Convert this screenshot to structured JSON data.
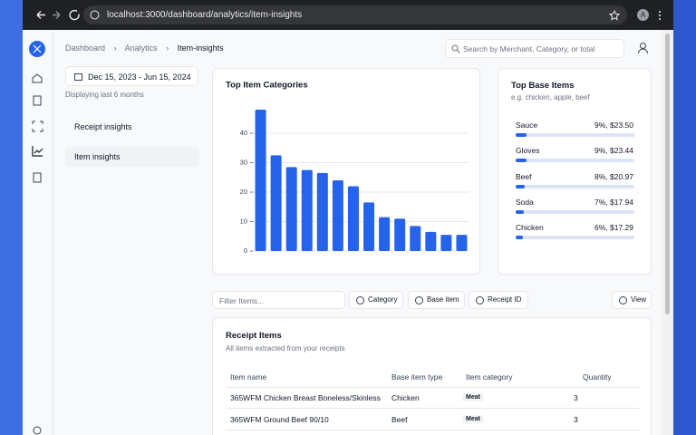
{
  "browser": {
    "url": "localhost:3000/dashboard/analytics/item-insights",
    "avatar": "A"
  },
  "breadcrumb": [
    "Dashboard",
    "Analytics",
    "Item-insights"
  ],
  "search_placeholder": "Search by Merchant, Category, or total",
  "date_range": "Dec 15, 2023 - Jun 15, 2024",
  "date_caption": "Displaying last 6 months",
  "nav": [
    "Receipt insights",
    "Item insights"
  ],
  "chart_data": {
    "type": "bar",
    "title": "Top Item Categories",
    "categories": [
      null,
      null,
      null,
      null,
      null,
      null,
      null,
      null,
      null,
      null,
      null,
      null,
      null,
      null
    ],
    "values": [
      48,
      32.5,
      28.5,
      27.5,
      26.5,
      24,
      22,
      16.5,
      11.5,
      11,
      8.5,
      6.5,
      5.5,
      5.5
    ],
    "color": "#2563eb",
    "ylim": [
      0,
      50
    ],
    "yticks": [
      0,
      10,
      20,
      30,
      40
    ],
    "grid": true
  },
  "base_items": {
    "title": "Top Base Items",
    "subtitle": "e.g. chicken, apple, beef",
    "items": [
      {
        "name": "Sauce",
        "value": 9,
        "value_label": "9%, $23.50"
      },
      {
        "name": "Gloves",
        "value": 9,
        "value_label": "9%, $23.44"
      },
      {
        "name": "Beef",
        "value": 8,
        "value_label": "8%, $20.97"
      },
      {
        "name": "Soda",
        "value": 7,
        "value_label": "7%, $17.94"
      },
      {
        "name": "Chicken",
        "value": 6,
        "value_label": "6%, $17.29"
      }
    ]
  },
  "toolbar": {
    "filter_placeholder": "Filter Items...",
    "buttons": [
      "Category",
      "Base item",
      "Receipt ID"
    ],
    "view": "View"
  },
  "table": {
    "title": "Receipt Items",
    "subtitle": "All items extracted from your receipts",
    "headers": [
      "Item name",
      "Base item type",
      "Item category",
      "Quantity"
    ],
    "rows": [
      [
        "365WFM Chicken Breast Boneless/Skinless",
        "Chicken",
        "Meat",
        "3"
      ],
      [
        "365WFM Ground Beef 90/10",
        "Beef",
        "Meat",
        "3"
      ]
    ]
  }
}
